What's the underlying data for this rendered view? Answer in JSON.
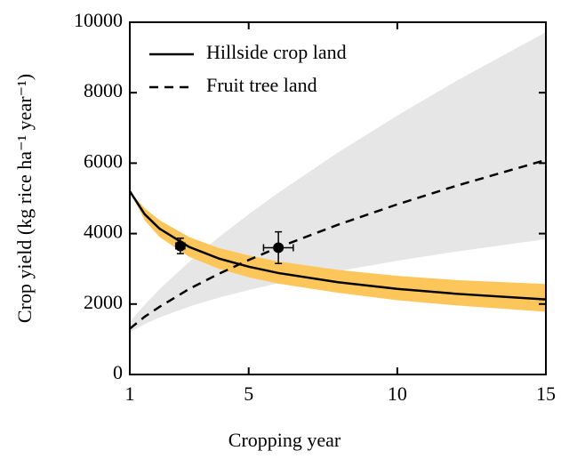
{
  "chart_data": {
    "type": "line",
    "x_label": "Cropping year",
    "y_label": "Crop yield (kg rice ha⁻¹ year⁻¹)",
    "x": [
      1,
      1.5,
      2,
      3,
      4,
      5,
      6,
      8,
      10,
      12,
      15
    ],
    "series": [
      {
        "name": "Hillside crop land",
        "color": "#000000",
        "dashed": false,
        "values": [
          5200,
          4550,
          4140,
          3620,
          3290,
          3060,
          2880,
          2620,
          2430,
          2290,
          2130
        ]
      },
      {
        "name": "Fruit tree land",
        "color": "#000000",
        "dashed": true,
        "values": [
          1300,
          1640,
          1920,
          2430,
          2860,
          3250,
          3610,
          4250,
          4830,
          5360,
          6090
        ]
      }
    ],
    "bands": [
      {
        "color": "#e6e6e6",
        "upper": [
          1500,
          1980,
          2420,
          3200,
          3900,
          4550,
          5160,
          6300,
          7350,
          8340,
          9720
        ],
        "lower": [
          1200,
          1430,
          1620,
          1930,
          2180,
          2400,
          2590,
          2930,
          3230,
          3490,
          3840
        ]
      },
      {
        "color": "#fdc65a",
        "upper": [
          5200,
          4720,
          4380,
          3900,
          3590,
          3380,
          3210,
          2970,
          2800,
          2680,
          2570
        ],
        "lower": [
          5200,
          4380,
          3900,
          3340,
          3000,
          2760,
          2580,
          2320,
          2110,
          1960,
          1780
        ]
      }
    ],
    "points": {
      "x": [
        2.7,
        6
      ],
      "values": [
        3650,
        3600
      ],
      "xerr": [
        0.15,
        0.5
      ],
      "yerr": [
        220,
        450
      ]
    },
    "xlim": [
      1,
      15
    ],
    "xticks": [
      1,
      5,
      10,
      15
    ],
    "ylim": [
      0,
      10000
    ],
    "yticks": [
      0,
      2000,
      4000,
      6000,
      8000,
      10000
    ],
    "legend": "upper left"
  }
}
